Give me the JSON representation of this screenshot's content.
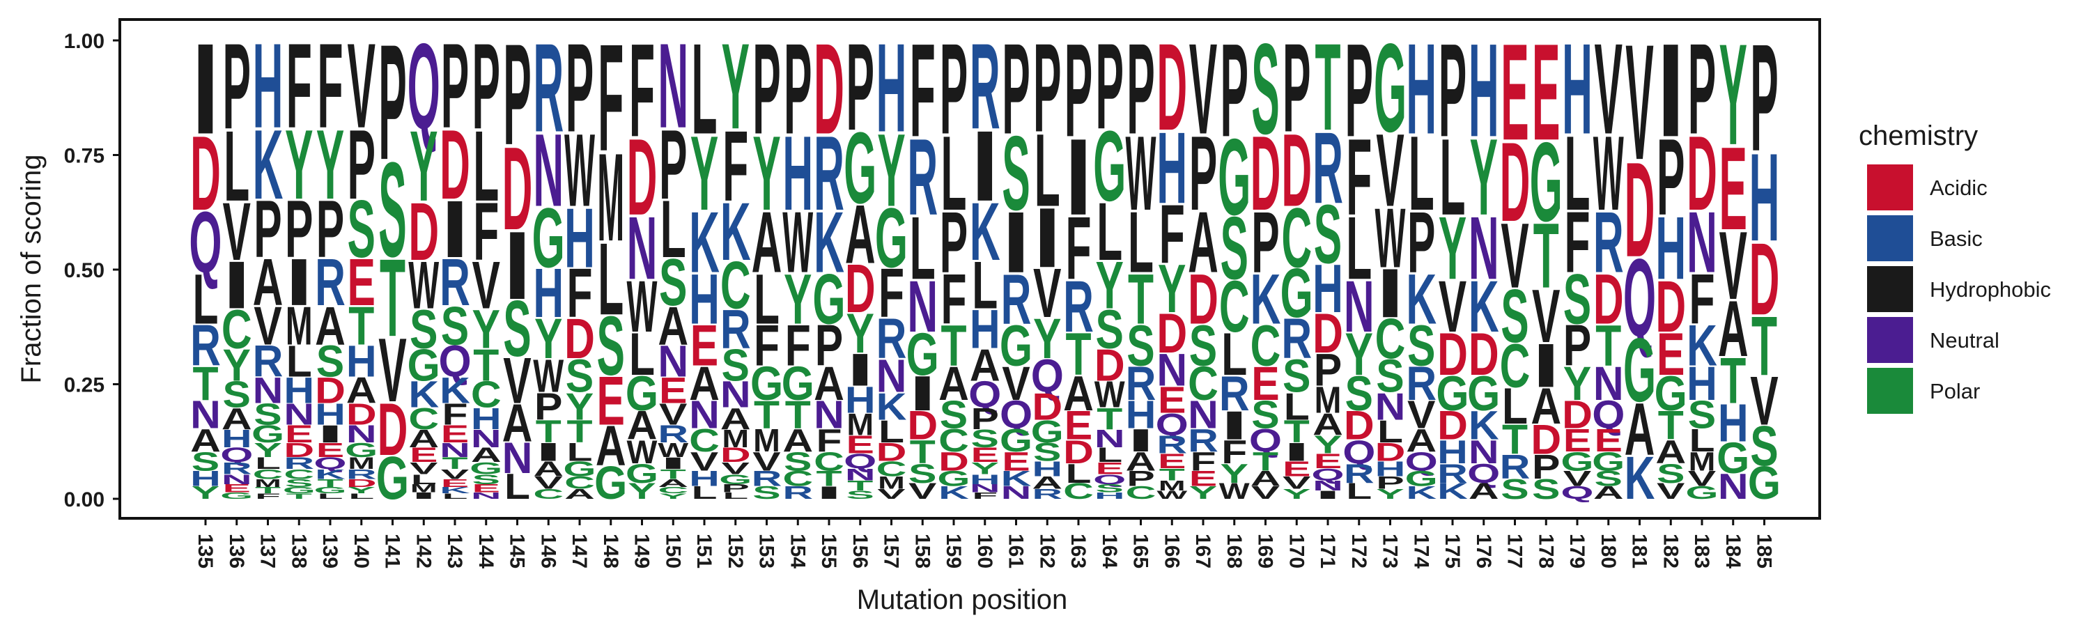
{
  "chart_data": {
    "type": "sequence-logo",
    "xlabel": "Mutation position",
    "ylabel": "Fraction of scoring",
    "ylim": [
      0,
      1
    ],
    "yticks": [
      "0.00",
      "0.25",
      "0.50",
      "0.75",
      "1.00"
    ],
    "legend": {
      "title": "chemistry",
      "position": "right",
      "entries": [
        {
          "name": "Acidic",
          "color": "#C8102E"
        },
        {
          "name": "Basic",
          "color": "#1F4E96"
        },
        {
          "name": "Hydrophobic",
          "color": "#1A1A1A"
        },
        {
          "name": "Neutral",
          "color": "#4B1D91"
        },
        {
          "name": "Polar",
          "color": "#1A8A3A"
        }
      ]
    },
    "residue_chemistry": {
      "D": "Acidic",
      "E": "Acidic",
      "H": "Basic",
      "K": "Basic",
      "R": "Basic",
      "A": "Hydrophobic",
      "F": "Hydrophobic",
      "I": "Hydrophobic",
      "L": "Hydrophobic",
      "M": "Hydrophobic",
      "P": "Hydrophobic",
      "V": "Hydrophobic",
      "W": "Hydrophobic",
      "N": "Neutral",
      "Q": "Neutral",
      "C": "Polar",
      "G": "Polar",
      "S": "Polar",
      "T": "Polar",
      "Y": "Polar"
    },
    "positions": [
      {
        "pos": "135",
        "stack": "IDQLRTNASHY"
      },
      {
        "pos": "136",
        "stack": "PLVICYSAHQRNEG"
      },
      {
        "pos": "137",
        "stack": "HKPAVRNSGYLCMTF"
      },
      {
        "pos": "138",
        "stack": "FYPIMLHNEDRCSGT"
      },
      {
        "pos": "139",
        "stack": "FYPRASDHIEQKTGL"
      },
      {
        "pos": "140",
        "stack": "VPSETHADNGMRDYL"
      },
      {
        "pos": "141",
        "stack": "PSTVDG"
      },
      {
        "pos": "142",
        "stack": "QYDWSGKCAEVLMI"
      },
      {
        "pos": "143",
        "stack": "PDIRSQKFENTVEKL"
      },
      {
        "pos": "144",
        "stack": "PLFVYTCHNAGSEN"
      },
      {
        "pos": "145",
        "stack": "PDISVANL"
      },
      {
        "pos": "146",
        "stack": "RNGHYWPTIAVC"
      },
      {
        "pos": "147",
        "stack": "PWHFDSYTLGCA"
      },
      {
        "pos": "148",
        "stack": "FMLSEAG"
      },
      {
        "pos": "149",
        "stack": "FDNWLGAWGY"
      },
      {
        "pos": "150",
        "stack": "NPLSANEVRWITACY"
      },
      {
        "pos": "151",
        "stack": "LYKHEANCVHL"
      },
      {
        "pos": "152",
        "stack": "YFKCRSNAMDVGPL"
      },
      {
        "pos": "153",
        "stack": "PYALFGTMVRS"
      },
      {
        "pos": "154",
        "stack": "PHWYFGTASCR"
      },
      {
        "pos": "155",
        "stack": "DRKGPANFCTI"
      },
      {
        "pos": "156",
        "stack": "PGADYIHMEQNTS"
      },
      {
        "pos": "157",
        "stack": "HYGFRNKLDCMV"
      },
      {
        "pos": "158",
        "stack": "FRLNGIDTSV"
      },
      {
        "pos": "159",
        "stack": "PLPFTASCDGK"
      },
      {
        "pos": "160",
        "stack": "RIKLHAQPSEYHNF"
      },
      {
        "pos": "161",
        "stack": "PSIRGVQGEKN"
      },
      {
        "pos": "162",
        "stack": "PLIVYQDGSHAR"
      },
      {
        "pos": "163",
        "stack": "PIFRTAEDLC"
      },
      {
        "pos": "164",
        "stack": "PGLYSDWTNLEQSH"
      },
      {
        "pos": "165",
        "stack": "PWLTSRHIAPC"
      },
      {
        "pos": "166",
        "stack": "DHFYDNEQRETMW"
      },
      {
        "pos": "167",
        "stack": "VPADSCNRFEY"
      },
      {
        "pos": "168",
        "stack": "PGSCLRIFYW"
      },
      {
        "pos": "169",
        "stack": "SDPKCESQTAV"
      },
      {
        "pos": "170",
        "stack": "PDCGRSLTIEVY"
      },
      {
        "pos": "171",
        "stack": "TRSHDPMAYEQNI"
      },
      {
        "pos": "172",
        "stack": "PFLNYSDQRL"
      },
      {
        "pos": "173",
        "stack": "GVWICSNLDHPY"
      },
      {
        "pos": "174",
        "stack": "HLPKSRVAQGK"
      },
      {
        "pos": "175",
        "stack": "PLYVDGDHRK"
      },
      {
        "pos": "176",
        "stack": "HYNKDGKNQA"
      },
      {
        "pos": "177",
        "stack": "EDVSCLTRS"
      },
      {
        "pos": "178",
        "stack": "EGTVIADPS"
      },
      {
        "pos": "179",
        "stack": "HLFSPYDEGVQ"
      },
      {
        "pos": "180",
        "stack": "VWRDTNQEGSA"
      },
      {
        "pos": "181",
        "stack": "VDQGAK"
      },
      {
        "pos": "182",
        "stack": "IPHDEGTASV"
      },
      {
        "pos": "183",
        "stack": "PDNFKHSLMVG"
      },
      {
        "pos": "184",
        "stack": "YEVATHGN"
      },
      {
        "pos": "185",
        "stack": "PHDTVSG"
      }
    ]
  }
}
